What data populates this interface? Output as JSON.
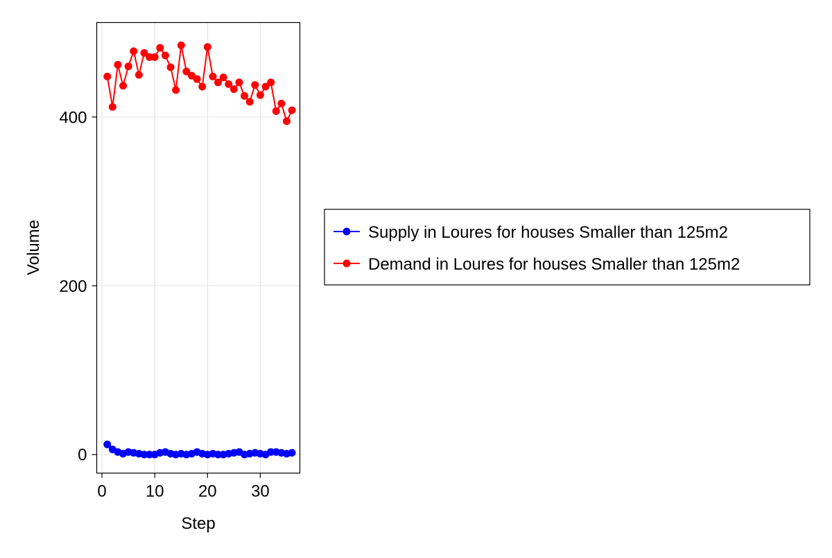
{
  "chart_data": {
    "type": "line",
    "title": "",
    "xlabel": "Step",
    "ylabel": "Volume",
    "xlim": [
      -1,
      37.5
    ],
    "ylim": [
      -22,
      512
    ],
    "grid": true,
    "legend_position": "right",
    "x_ticks": [
      0,
      10,
      20,
      30
    ],
    "x_tick_labels": [
      "0",
      "10",
      "20",
      "30"
    ],
    "y_ticks": [
      0,
      200,
      400
    ],
    "y_tick_labels": [
      "0",
      "200",
      "400"
    ],
    "x": [
      1,
      2,
      3,
      4,
      5,
      6,
      7,
      8,
      9,
      10,
      11,
      12,
      13,
      14,
      15,
      16,
      17,
      18,
      19,
      20,
      21,
      22,
      23,
      24,
      25,
      26,
      27,
      28,
      29,
      30,
      31,
      32,
      33,
      34,
      35,
      36
    ],
    "series": [
      {
        "name": "Supply in Loures for houses Smaller than 125m2",
        "color": "#0000ff",
        "values": [
          12,
          6,
          3,
          1,
          3,
          2,
          1,
          0,
          0,
          0,
          2,
          3,
          1,
          0,
          1,
          0,
          1,
          3,
          1,
          0,
          1,
          0,
          0,
          1,
          2,
          3,
          0,
          1,
          2,
          1,
          0,
          3,
          3,
          2,
          1,
          2
        ]
      },
      {
        "name": "Demand in Loures for houses Smaller than 125m2",
        "color": "#ff0000",
        "values": [
          448,
          412,
          462,
          437,
          460,
          478,
          450,
          476,
          471,
          471,
          482,
          473,
          459,
          432,
          485,
          454,
          449,
          445,
          436,
          483,
          448,
          441,
          447,
          439,
          433,
          441,
          425,
          418,
          438,
          426,
          436,
          441,
          407,
          416,
          395,
          408
        ]
      }
    ]
  }
}
